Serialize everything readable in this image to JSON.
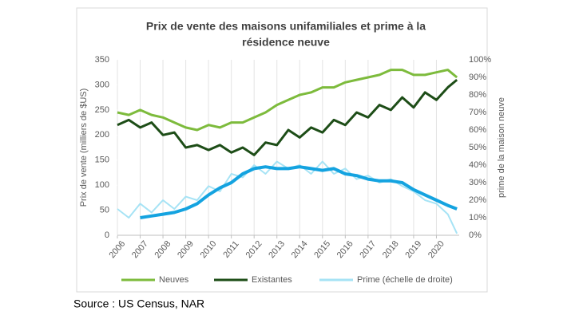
{
  "chart_data": {
    "type": "line",
    "title": [
      "Prix de vente des maisons unifamiliales et prime à la",
      "résidence neuve"
    ],
    "y_label": "Prix de vente (milliers de $US)",
    "y2_label": "prime de la maison neuve",
    "source": "Source : US Census, NAR",
    "x": [
      2006,
      2006.5,
      2007,
      2007.5,
      2008,
      2008.5,
      2009,
      2009.5,
      2010,
      2010.5,
      2011,
      2011.5,
      2012,
      2012.5,
      2013,
      2013.5,
      2014,
      2014.5,
      2015,
      2015.5,
      2016,
      2016.5,
      2017,
      2017.5,
      2018,
      2018.5,
      2019,
      2019.5,
      2020,
      2020.5,
      2020.9
    ],
    "xlim": [
      2006,
      2021
    ],
    "xticks": [
      2006,
      2007,
      2008,
      2009,
      2010,
      2011,
      2012,
      2013,
      2014,
      2015,
      2016,
      2017,
      2018,
      2019,
      2020
    ],
    "ylim": [
      0,
      350
    ],
    "yticks": [
      0,
      50,
      100,
      150,
      200,
      250,
      300,
      350
    ],
    "y2lim": [
      0,
      100
    ],
    "y2ticks": [
      {
        "value": 0,
        "label": "0%"
      },
      {
        "value": 10,
        "label": "10%"
      },
      {
        "value": 20,
        "label": "20%"
      },
      {
        "value": 30,
        "label": "30%"
      },
      {
        "value": 40,
        "label": "40%"
      },
      {
        "value": 50,
        "label": "50%"
      },
      {
        "value": 60,
        "label": "60%"
      },
      {
        "value": 70,
        "label": "70%"
      },
      {
        "value": 80,
        "label": "80%"
      },
      {
        "value": 90,
        "label": "90%"
      },
      {
        "value": 100,
        "label": "100%"
      }
    ],
    "grid": "x",
    "legend": "bottom",
    "series": [
      {
        "name": "Neuves",
        "color": "#7dbb3c",
        "width": 3,
        "values": [
          245,
          240,
          250,
          240,
          235,
          225,
          215,
          210,
          220,
          215,
          225,
          225,
          235,
          245,
          260,
          270,
          280,
          285,
          295,
          295,
          305,
          310,
          315,
          320,
          330,
          330,
          320,
          320,
          325,
          330,
          315
        ]
      },
      {
        "name": "Existantes",
        "color": "#1d4d17",
        "width": 3,
        "values": [
          220,
          230,
          215,
          225,
          200,
          205,
          175,
          180,
          170,
          180,
          165,
          175,
          160,
          185,
          180,
          210,
          195,
          215,
          205,
          230,
          220,
          245,
          235,
          260,
          250,
          275,
          255,
          285,
          270,
          295,
          310
        ]
      },
      {
        "name": "Prime (échelle de droite)",
        "color": "#a6e3f5",
        "width": 2,
        "axis": "y2",
        "values": [
          15,
          10,
          18,
          13,
          20,
          15,
          22,
          20,
          28,
          25,
          35,
          33,
          40,
          35,
          42,
          38,
          40,
          35,
          42,
          35,
          38,
          32,
          34,
          30,
          32,
          28,
          25,
          20,
          18,
          12,
          1
        ]
      },
      {
        "color": "#14a3e0",
        "width": 4,
        "axis": "y2",
        "values": [
          null,
          null,
          10,
          11,
          12,
          13,
          15,
          18,
          23,
          27,
          30,
          35,
          38,
          39,
          38,
          38,
          39,
          38,
          37,
          38,
          35,
          34,
          32,
          31,
          31,
          30,
          26,
          23,
          20,
          17,
          15
        ]
      }
    ]
  }
}
